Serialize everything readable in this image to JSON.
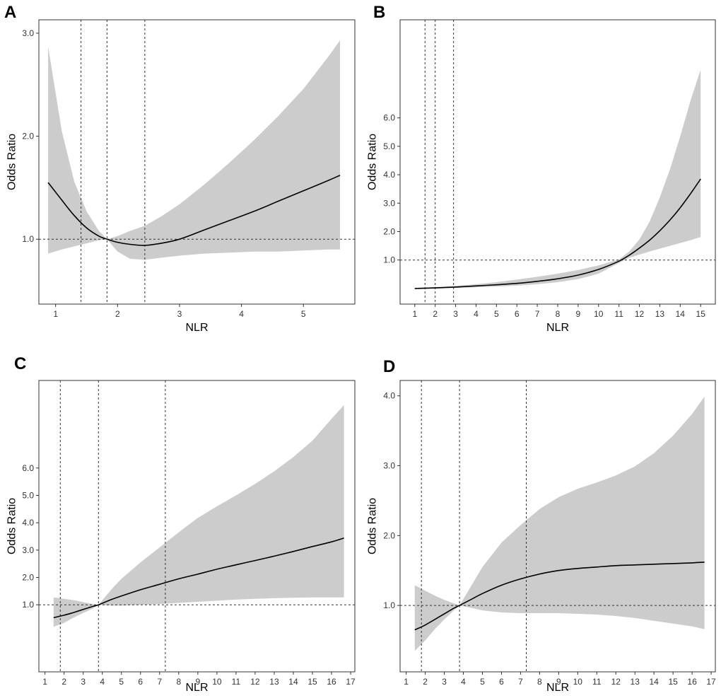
{
  "figure": {
    "panels": [
      {
        "letter": "A"
      },
      {
        "letter": "B"
      },
      {
        "letter": "C"
      },
      {
        "letter": "D"
      }
    ]
  },
  "colors": {
    "band": "#cccccc",
    "line": "#000000",
    "reference": "#333333",
    "frame": "#333333",
    "tick_text": "#333333"
  },
  "chart_data": [
    {
      "panel": "A",
      "type": "line",
      "title": "",
      "xlabel": "NLR",
      "ylabel": "Odds Ratio",
      "xlim": [
        0.73,
        5.83
      ],
      "ylim": [
        0.37,
        3.13
      ],
      "xticks": [
        1,
        2,
        3,
        4,
        5
      ],
      "xtick_labels": [
        "1",
        "2",
        "3",
        "4",
        "5"
      ],
      "yticks": [
        1.0,
        2.0,
        3.0
      ],
      "ytick_labels": [
        "1.0",
        "2.0",
        "3.0"
      ],
      "reference_y": 1.0,
      "vlines": [
        1.41,
        1.83,
        2.44
      ],
      "x": [
        0.88,
        1.1,
        1.3,
        1.5,
        1.7,
        1.83,
        2.0,
        2.2,
        2.44,
        2.7,
        3.0,
        3.4,
        3.8,
        4.2,
        4.6,
        5.0,
        5.4,
        5.59
      ],
      "series": [
        {
          "name": "Odds Ratio",
          "values": [
            1.55,
            1.38,
            1.23,
            1.11,
            1.03,
            1.0,
            0.97,
            0.95,
            0.94,
            0.96,
            1.0,
            1.09,
            1.18,
            1.27,
            1.37,
            1.47,
            1.57,
            1.62
          ]
        },
        {
          "name": "CI lower",
          "values": [
            0.86,
            0.9,
            0.93,
            0.96,
            0.99,
            1.0,
            0.88,
            0.81,
            0.8,
            0.82,
            0.84,
            0.86,
            0.87,
            0.88,
            0.88,
            0.89,
            0.9,
            0.9
          ]
        },
        {
          "name": "CI upper",
          "values": [
            2.87,
            2.05,
            1.56,
            1.27,
            1.08,
            1.0,
            1.03,
            1.08,
            1.13,
            1.22,
            1.34,
            1.53,
            1.74,
            1.96,
            2.2,
            2.46,
            2.77,
            2.93
          ]
        }
      ]
    },
    {
      "panel": "B",
      "type": "line",
      "title": "",
      "xlabel": "NLR",
      "ylabel": "Odds Ratio",
      "xlim": [
        0.28,
        15.72
      ],
      "ylim": [
        -0.55,
        9.45
      ],
      "xticks": [
        1,
        2,
        3,
        4,
        5,
        6,
        7,
        8,
        9,
        10,
        11,
        12,
        13,
        14,
        15
      ],
      "xtick_labels": [
        "1",
        "2",
        "3",
        "4",
        "5",
        "6",
        "7",
        "8",
        "9",
        "10",
        "11",
        "12",
        "13",
        "14",
        "15"
      ],
      "yticks": [
        1.0,
        2.0,
        3.0,
        4.0,
        5.0,
        6.0
      ],
      "ytick_labels": [
        "1.0",
        "2.0",
        "3.0",
        "4.0",
        "5.0",
        "6.0"
      ],
      "reference_y": 1.0,
      "vlines": [
        1.5,
        2.0,
        2.9
      ],
      "x": [
        1.0,
        2.0,
        3.0,
        4.0,
        5.0,
        6.0,
        7.0,
        8.0,
        9.0,
        10.0,
        11.0,
        11.5,
        12.0,
        12.5,
        13.0,
        13.5,
        14.0,
        14.5,
        15.0
      ],
      "series": [
        {
          "name": "Odds Ratio",
          "values": [
            0.0,
            0.02,
            0.05,
            0.09,
            0.13,
            0.18,
            0.25,
            0.34,
            0.47,
            0.67,
            0.96,
            1.17,
            1.42,
            1.7,
            2.03,
            2.41,
            2.84,
            3.33,
            3.85
          ]
        },
        {
          "name": "CI lower",
          "values": [
            -0.02,
            0.0,
            0.02,
            0.04,
            0.07,
            0.1,
            0.15,
            0.22,
            0.33,
            0.52,
            0.9,
            1.08,
            1.19,
            1.3,
            1.4,
            1.5,
            1.6,
            1.7,
            1.81
          ]
        },
        {
          "name": "CI upper",
          "values": [
            0.02,
            0.05,
            0.09,
            0.15,
            0.22,
            0.31,
            0.41,
            0.52,
            0.65,
            0.81,
            1.02,
            1.3,
            1.72,
            2.35,
            3.2,
            4.2,
            5.35,
            6.6,
            7.7
          ]
        }
      ]
    },
    {
      "panel": "C",
      "type": "line",
      "title": "",
      "xlabel": "NLR",
      "ylabel": "Odds Ratio",
      "xlim": [
        0.68,
        17.22
      ],
      "ylim": [
        -1.45,
        9.2
      ],
      "xticks": [
        1,
        2,
        3,
        4,
        5,
        6,
        7,
        8,
        9,
        10,
        11,
        12,
        13,
        14,
        15,
        16,
        17
      ],
      "xtick_labels": [
        "1",
        "2",
        "3",
        "4",
        "5",
        "6",
        "7",
        "8",
        "9",
        "10",
        "11",
        "12",
        "13",
        "14",
        "15",
        "16",
        "17"
      ],
      "yticks": [
        1.0,
        2.0,
        3.0,
        4.0,
        5.0,
        6.0
      ],
      "ytick_labels": [
        "1.0",
        "2.0",
        "3.0",
        "4.0",
        "5.0",
        "6.0"
      ],
      "reference_y": 1.0,
      "vlines": [
        1.8,
        3.8,
        7.3
      ],
      "x": [
        1.45,
        2.0,
        2.5,
        3.0,
        3.5,
        3.8,
        4.5,
        5.0,
        6.0,
        7.0,
        8.0,
        9.0,
        10.0,
        11.0,
        12.0,
        13.0,
        14.0,
        15.0,
        16.0,
        16.65
      ],
      "series": [
        {
          "name": "Odds Ratio",
          "values": [
            0.53,
            0.62,
            0.72,
            0.83,
            0.94,
            1.0,
            1.2,
            1.32,
            1.55,
            1.75,
            1.95,
            2.12,
            2.3,
            2.46,
            2.62,
            2.78,
            2.95,
            3.13,
            3.3,
            3.44
          ]
        },
        {
          "name": "CI lower",
          "values": [
            0.2,
            0.34,
            0.53,
            0.7,
            0.86,
            1.0,
            0.97,
            0.97,
            1.0,
            1.03,
            1.07,
            1.11,
            1.15,
            1.19,
            1.22,
            1.24,
            1.26,
            1.27,
            1.27,
            1.27
          ]
        },
        {
          "name": "CI upper",
          "values": [
            1.27,
            1.22,
            1.17,
            1.1,
            1.03,
            1.0,
            1.58,
            1.95,
            2.55,
            3.1,
            3.65,
            4.18,
            4.6,
            5.0,
            5.42,
            5.88,
            6.4,
            7.0,
            7.8,
            8.3
          ]
        }
      ]
    },
    {
      "panel": "D",
      "type": "line",
      "title": "",
      "xlabel": "NLR",
      "ylabel": "Odds Ratio",
      "xlim": [
        0.68,
        17.22
      ],
      "ylim": [
        0.05,
        4.22
      ],
      "xticks": [
        1,
        2,
        3,
        4,
        5,
        6,
        7,
        8,
        9,
        10,
        11,
        12,
        13,
        14,
        15,
        16,
        17
      ],
      "xtick_labels": [
        "1",
        "2",
        "3",
        "4",
        "5",
        "6",
        "7",
        "8",
        "9",
        "10",
        "11",
        "12",
        "13",
        "14",
        "15",
        "16",
        "17"
      ],
      "yticks": [
        1.0,
        2.0,
        3.0,
        4.0
      ],
      "ytick_labels": [
        "1.0",
        "2.0",
        "3.0",
        "4.0"
      ],
      "reference_y": 1.0,
      "vlines": [
        1.8,
        3.8,
        7.3
      ],
      "x": [
        1.45,
        2.0,
        2.5,
        3.0,
        3.5,
        3.8,
        4.5,
        5.0,
        6.0,
        7.0,
        8.0,
        9.0,
        10.0,
        11.0,
        12.0,
        13.0,
        14.0,
        15.0,
        16.0,
        16.65
      ],
      "series": [
        {
          "name": "Odds Ratio",
          "values": [
            0.65,
            0.72,
            0.8,
            0.88,
            0.96,
            1.0,
            1.1,
            1.17,
            1.29,
            1.38,
            1.45,
            1.5,
            1.53,
            1.55,
            1.57,
            1.58,
            1.59,
            1.6,
            1.61,
            1.62
          ]
        },
        {
          "name": "CI lower",
          "values": [
            0.35,
            0.5,
            0.66,
            0.8,
            0.93,
            1.0,
            0.96,
            0.93,
            0.9,
            0.89,
            0.89,
            0.89,
            0.88,
            0.87,
            0.85,
            0.82,
            0.78,
            0.74,
            0.7,
            0.66
          ]
        },
        {
          "name": "CI upper",
          "values": [
            1.29,
            1.21,
            1.14,
            1.08,
            1.03,
            1.0,
            1.32,
            1.55,
            1.9,
            2.15,
            2.38,
            2.55,
            2.67,
            2.76,
            2.86,
            2.99,
            3.18,
            3.43,
            3.74,
            3.99
          ]
        }
      ]
    }
  ]
}
